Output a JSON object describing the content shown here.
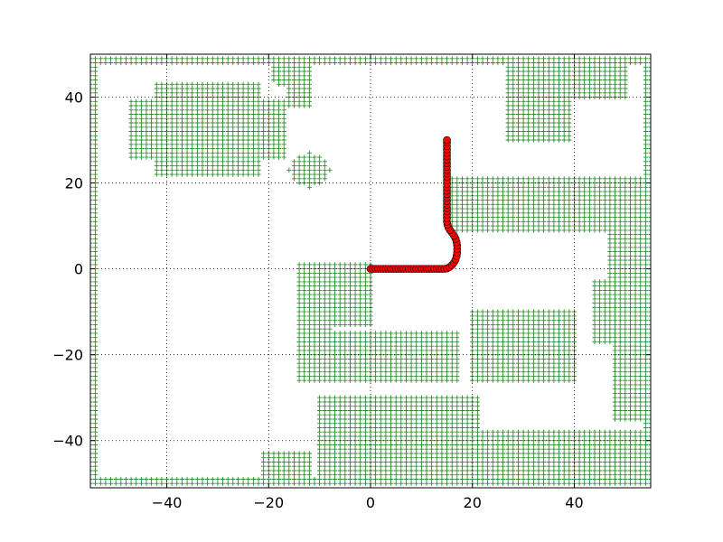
{
  "chart_data": {
    "type": "scatter",
    "title": "",
    "xlabel": "",
    "ylabel": "",
    "xlim": [
      -55,
      55
    ],
    "ylim": [
      -51,
      50
    ],
    "grid": true,
    "x_ticks": [
      -40,
      -20,
      0,
      20,
      40
    ],
    "y_ticks": [
      -40,
      -20,
      0,
      20,
      40
    ],
    "x_tick_labels": [
      "−40",
      "−20",
      "0",
      "20",
      "40"
    ],
    "y_tick_labels": [
      "−40",
      "−20",
      "0",
      "20",
      "40"
    ],
    "colors": {
      "obstacle": "#2e8b2e",
      "path_fill": "#ff0000",
      "path_edge": "#000000"
    },
    "obstacle_marker": "+",
    "obstacle_spacing": 1,
    "obstacles": {
      "rects": [
        [
          -55,
          -53.5,
          -50,
          49
        ],
        [
          -55,
          55,
          48,
          49
        ],
        [
          53.5,
          55,
          -50,
          49
        ],
        [
          -55,
          55,
          -50,
          -48.5
        ],
        [
          -42,
          -22,
          22,
          43
        ],
        [
          -47,
          -17,
          26,
          39
        ],
        [
          -16,
          -12,
          38,
          47
        ],
        [
          27,
          39,
          30,
          48
        ],
        [
          40,
          50,
          40,
          48
        ],
        [
          16,
          54,
          9,
          21
        ],
        [
          -14,
          0,
          -13,
          1
        ],
        [
          -8,
          17,
          -26,
          -15
        ],
        [
          -14,
          -8,
          -26,
          -13
        ],
        [
          20,
          40,
          -26,
          -10
        ],
        [
          -10,
          21,
          -50,
          -30
        ],
        [
          21,
          54,
          -50,
          -38
        ],
        [
          47,
          54,
          -17,
          8
        ],
        [
          44,
          49,
          -17,
          -3
        ],
        [
          48,
          54,
          -35,
          -18
        ],
        [
          -21,
          -12,
          -50,
          -43
        ]
      ],
      "circles": [
        [
          -12,
          23,
          4
        ],
        [
          -16.5,
          45.5,
          3.5
        ],
        [
          -11.5,
          -23.5,
          3.5
        ]
      ]
    },
    "series": [
      {
        "marker": "o",
        "points": [
          [
            0,
            0
          ],
          [
            0.5,
            0
          ],
          [
            1,
            0
          ],
          [
            1.5,
            0
          ],
          [
            2,
            0
          ],
          [
            2.5,
            0
          ],
          [
            3,
            0
          ],
          [
            3.5,
            0
          ],
          [
            4,
            0
          ],
          [
            4.5,
            0
          ],
          [
            5,
            0
          ],
          [
            5.5,
            0
          ],
          [
            6,
            0
          ],
          [
            6.5,
            0
          ],
          [
            7,
            0
          ],
          [
            7.5,
            0
          ],
          [
            8,
            0
          ],
          [
            8.5,
            0
          ],
          [
            9,
            0
          ],
          [
            9.5,
            0
          ],
          [
            10,
            0
          ],
          [
            10.5,
            0
          ],
          [
            11,
            0
          ],
          [
            11.5,
            0
          ],
          [
            12,
            0
          ],
          [
            12.5,
            0
          ],
          [
            13,
            0
          ],
          [
            13.5,
            0
          ],
          [
            14,
            0
          ],
          [
            14.5,
            0
          ],
          [
            15,
            0.1
          ],
          [
            15.5,
            0.4
          ],
          [
            16,
            0.9
          ],
          [
            16.4,
            1.5
          ],
          [
            16.7,
            2.2
          ],
          [
            16.9,
            3
          ],
          [
            17,
            3.8
          ],
          [
            17,
            4.6
          ],
          [
            17,
            5.4
          ],
          [
            16.9,
            6.2
          ],
          [
            16.7,
            7
          ],
          [
            16.4,
            7.7
          ],
          [
            16,
            8.4
          ],
          [
            15.6,
            9
          ],
          [
            15.3,
            9.6
          ],
          [
            15.1,
            10.3
          ],
          [
            15,
            11
          ],
          [
            15,
            11.8
          ],
          [
            15,
            12.6
          ],
          [
            15,
            13.4
          ],
          [
            15,
            14.2
          ],
          [
            15,
            15
          ],
          [
            15,
            15.8
          ],
          [
            15,
            16.6
          ],
          [
            15,
            17.4
          ],
          [
            15,
            18.2
          ],
          [
            15,
            19
          ],
          [
            15,
            19.8
          ],
          [
            15,
            20.6
          ],
          [
            15,
            21.4
          ],
          [
            15,
            22.2
          ],
          [
            15,
            23
          ],
          [
            15,
            23.8
          ],
          [
            15,
            24.6
          ],
          [
            15,
            25.4
          ],
          [
            15,
            26.2
          ],
          [
            15,
            27
          ],
          [
            15,
            27.8
          ],
          [
            15,
            28.6
          ],
          [
            15,
            29.4
          ],
          [
            15,
            30
          ]
        ]
      }
    ]
  }
}
